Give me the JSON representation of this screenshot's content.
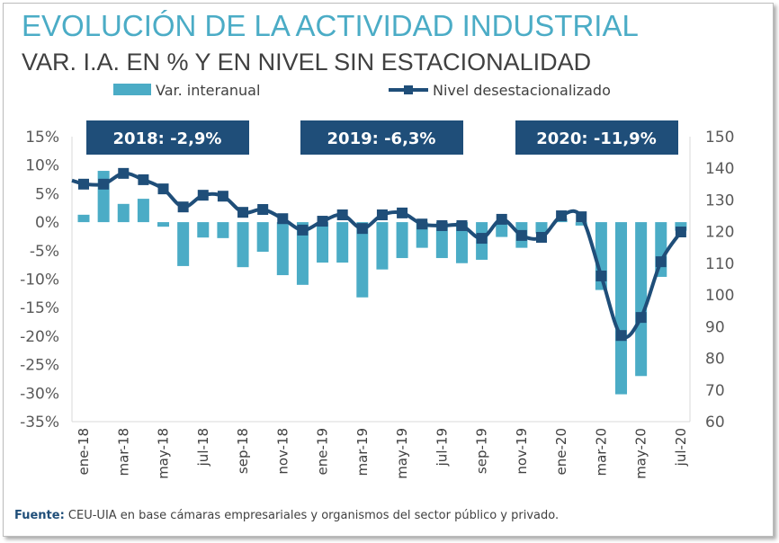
{
  "title": "EVOLUCIÓN DE LA ACTIVIDAD INDUSTRIAL",
  "subtitle": "VAR. I.A. EN % Y EN NIVEL SIN ESTACIONALIDAD",
  "footer": {
    "label": "Fuente:",
    "text": " CEU-UIA en base cámaras empresariales y organismos del sector público y privado."
  },
  "banners": [
    "2018:  -2,9%",
    "2019: -6,3%",
    "2020: -11,9%"
  ],
  "colors": {
    "title": "#4bacc6",
    "bar": "#4bacc6",
    "line": "#1f4e79",
    "banner": "#1f4e79"
  },
  "chart_data": {
    "type": "bar+line",
    "categories": [
      "ene-18",
      "feb-18",
      "mar-18",
      "abr-18",
      "may-18",
      "jun-18",
      "jul-18",
      "ago-18",
      "sep-18",
      "oct-18",
      "nov-18",
      "dic-18",
      "ene-19",
      "feb-19",
      "mar-19",
      "abr-19",
      "may-19",
      "jun-19",
      "jul-19",
      "ago-19",
      "sep-19",
      "oct-19",
      "nov-19",
      "dic-19",
      "ene-20",
      "feb-20",
      "mar-20",
      "abr-20",
      "may-20",
      "jun-20",
      "jul-20"
    ],
    "x_tick_labels": [
      "ene-18",
      "mar-18",
      "may-18",
      "jul-18",
      "sep-18",
      "nov-18",
      "ene-19",
      "mar-19",
      "may-19",
      "jul-19",
      "sep-19",
      "nov-19",
      "ene-20",
      "mar-20",
      "may-20",
      "jul-20"
    ],
    "series": [
      {
        "name": "Var. interanual",
        "type": "bar",
        "axis": "left",
        "values": [
          1.3,
          9.0,
          3.2,
          4.1,
          -0.8,
          -7.7,
          -2.7,
          -2.8,
          -7.9,
          -5.2,
          -9.3,
          -11.0,
          -7.1,
          -7.1,
          -13.2,
          -8.3,
          -6.3,
          -4.5,
          -6.3,
          -7.2,
          -6.6,
          -2.6,
          -4.5,
          -2.0,
          0.6,
          -0.6,
          -11.9,
          -30.2,
          -27.0,
          -9.6,
          -1.5
        ]
      },
      {
        "name": "Nivel desestacionalizado",
        "type": "line",
        "axis": "right",
        "values": [
          135.0,
          135.0,
          138.4,
          136.4,
          133.5,
          127.8,
          131.5,
          131.2,
          126.1,
          127.0,
          124.1,
          120.5,
          123.3,
          125.3,
          121.0,
          125.3,
          125.9,
          122.4,
          121.9,
          121.9,
          117.9,
          123.9,
          118.8,
          118.2,
          125.0,
          124.7,
          106.0,
          87.2,
          92.9,
          110.5,
          119.9
        ]
      }
    ],
    "y_left": {
      "lim": [
        -35,
        15
      ],
      "ticks": [
        "15%",
        "10%",
        "5%",
        "0%",
        "-5%",
        "-10%",
        "-15%",
        "-20%",
        "-25%",
        "-30%",
        "-35%"
      ]
    },
    "y_right": {
      "lim": [
        60,
        150
      ],
      "ticks": [
        "150",
        "140",
        "130",
        "120",
        "110",
        "100",
        "90",
        "80",
        "70",
        "60"
      ]
    },
    "legend": "top",
    "grid": false
  }
}
